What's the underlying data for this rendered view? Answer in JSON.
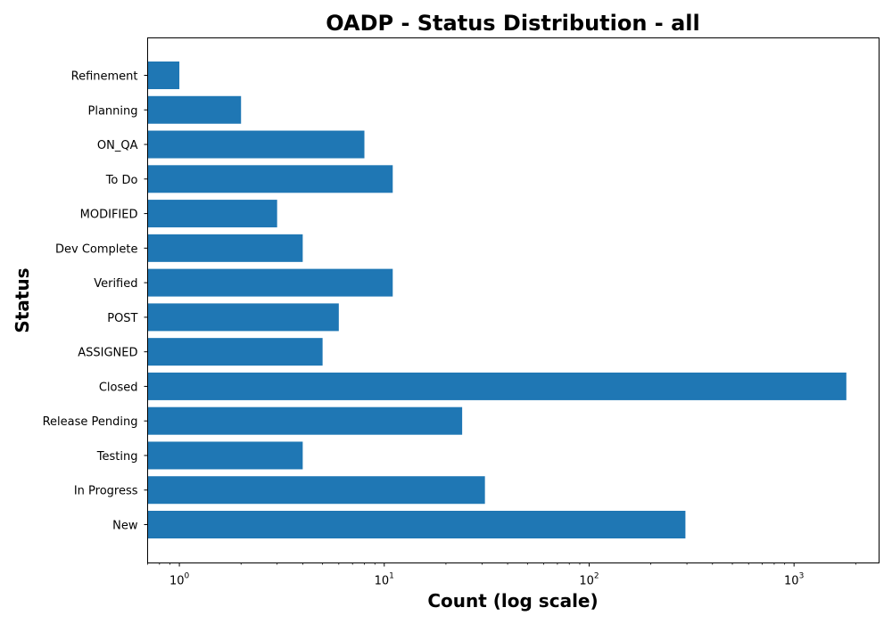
{
  "chart_data": {
    "type": "bar",
    "orientation": "horizontal",
    "title": "OADP - Status Distribution - all",
    "xlabel": "Count (log scale)",
    "ylabel": "Status",
    "x_scale": "log",
    "xlim": [
      0.7,
      2600
    ],
    "x_ticks": [
      {
        "value": 1,
        "base": "10",
        "exp": "0"
      },
      {
        "value": 10,
        "base": "10",
        "exp": "1"
      },
      {
        "value": 100,
        "base": "10",
        "exp": "2"
      },
      {
        "value": 1000,
        "base": "10",
        "exp": "3"
      }
    ],
    "grid": false,
    "legend": "none",
    "bar_color": "#1f77b4",
    "categories": [
      "New",
      "In Progress",
      "Testing",
      "Release Pending",
      "Closed",
      "ASSIGNED",
      "POST",
      "Verified",
      "Dev Complete",
      "MODIFIED",
      "To Do",
      "ON_QA",
      "Planning",
      "Refinement"
    ],
    "values": [
      295,
      31,
      4,
      24,
      1800,
      5,
      6,
      11,
      4,
      3,
      11,
      8,
      2,
      1
    ]
  }
}
